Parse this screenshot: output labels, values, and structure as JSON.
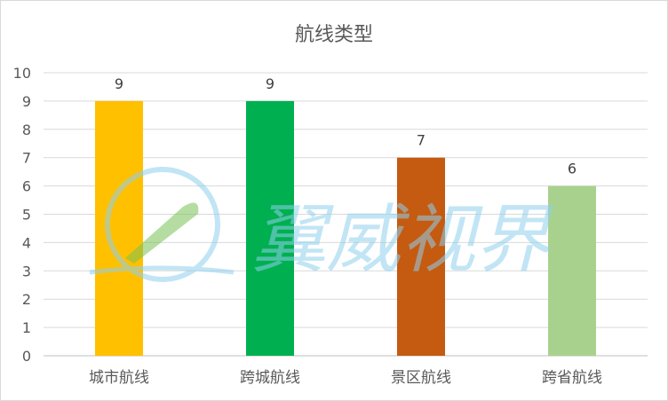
{
  "chart_data": {
    "type": "bar",
    "title": "航线类型",
    "categories": [
      "城市航线",
      "跨城航线",
      "景区航线",
      "跨省航线"
    ],
    "values": [
      9,
      9,
      7,
      6
    ],
    "colors": [
      "#ffc000",
      "#00b050",
      "#c55a11",
      "#a9d18e"
    ],
    "ylim": [
      0,
      10
    ],
    "yticks": [
      "0",
      "1",
      "2",
      "3",
      "4",
      "5",
      "6",
      "7",
      "8",
      "9",
      "10"
    ],
    "grid": true,
    "data_labels": true,
    "xlabel": "",
    "ylabel": ""
  },
  "watermark": {
    "text": "翼威视界",
    "logo_icon": "paper-plane-globe-icon"
  }
}
